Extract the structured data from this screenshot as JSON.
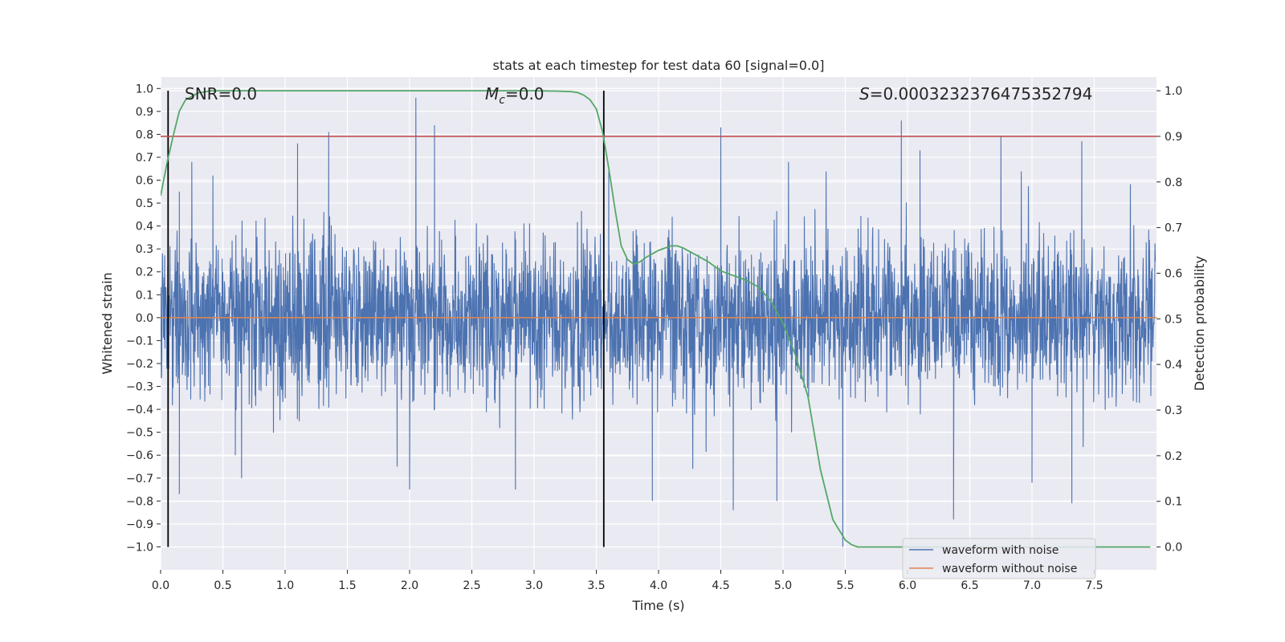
{
  "chart_data": {
    "type": "line",
    "title": "stats at each timestep for test data 60 [signal=0.0]",
    "xlabel": "Time (s)",
    "ylabel": "Whitened strain",
    "y2label": "Detection probability",
    "xlim": [
      0.0,
      8.0
    ],
    "ylim": [
      -1.1,
      1.05
    ],
    "y2lim": [
      -0.05,
      1.03
    ],
    "x_ticks": [
      "0.0",
      "0.5",
      "1.0",
      "1.5",
      "2.0",
      "2.5",
      "3.0",
      "3.5",
      "4.0",
      "4.5",
      "5.0",
      "5.5",
      "6.0",
      "6.5",
      "7.0",
      "7.5"
    ],
    "y_ticks": [
      "−1.0",
      "−0.9",
      "−0.8",
      "−0.7",
      "−0.6",
      "−0.5",
      "−0.4",
      "−0.3",
      "−0.2",
      "−0.1",
      "0.0",
      "0.1",
      "0.2",
      "0.3",
      "0.4",
      "0.5",
      "0.6",
      "0.7",
      "0.8",
      "0.9",
      "1.0"
    ],
    "y2_ticks": [
      "0.0",
      "0.1",
      "0.2",
      "0.3",
      "0.4",
      "0.5",
      "0.6",
      "0.7",
      "0.8",
      "0.9",
      "1.0"
    ],
    "grid": true,
    "legend_location": "lower right",
    "annotations": {
      "snr": "SNR=0.0",
      "mc_symbol": "M",
      "mc_subscript": "c",
      "mc_value": "=0.0",
      "s_symbol": "S",
      "s_value": "=0.0003232376475352794"
    },
    "vertical_lines_x": [
      0.06,
      3.56
    ],
    "threshold_probability": 0.9,
    "series": [
      {
        "name": "waveform with noise",
        "color": "#4c72b0",
        "axis": "left",
        "noise_envelope": 0.37,
        "peaks": [
          {
            "x": 0.15,
            "y": 0.55
          },
          {
            "x": 0.25,
            "y": 0.68
          },
          {
            "x": 0.42,
            "y": 0.62
          },
          {
            "x": 1.1,
            "y": 0.76
          },
          {
            "x": 1.35,
            "y": 0.81
          },
          {
            "x": 2.05,
            "y": 0.96
          },
          {
            "x": 2.2,
            "y": 0.84
          },
          {
            "x": 3.6,
            "y": 0.66
          },
          {
            "x": 4.5,
            "y": 0.83
          },
          {
            "x": 5.95,
            "y": 0.86
          },
          {
            "x": 6.1,
            "y": 0.73
          },
          {
            "x": 6.75,
            "y": 0.79
          },
          {
            "x": 7.4,
            "y": 0.77
          },
          {
            "x": 0.15,
            "y": -0.77
          },
          {
            "x": 0.6,
            "y": -0.6
          },
          {
            "x": 2.0,
            "y": -0.75
          },
          {
            "x": 2.85,
            "y": -0.75
          },
          {
            "x": 3.95,
            "y": -0.8
          },
          {
            "x": 4.6,
            "y": -0.84
          },
          {
            "x": 4.95,
            "y": -0.8
          },
          {
            "x": 5.48,
            "y": -1.0
          },
          {
            "x": 6.37,
            "y": -0.88
          },
          {
            "x": 7.32,
            "y": -0.81
          },
          {
            "x": 7.0,
            "y": -0.72
          },
          {
            "x": 0.65,
            "y": -0.7
          },
          {
            "x": 1.9,
            "y": -0.65
          }
        ]
      },
      {
        "name": "waveform without noise",
        "color": "#dd8452",
        "axis": "left",
        "x": [
          0.0,
          8.0
        ],
        "y": [
          0.0,
          0.0
        ]
      },
      {
        "color": "#55a868",
        "axis": "right",
        "x": [
          0.0,
          0.05,
          0.1,
          0.15,
          0.2,
          0.3,
          0.4,
          0.5,
          1.0,
          2.0,
          3.0,
          3.2,
          3.3,
          3.35,
          3.4,
          3.45,
          3.5,
          3.55,
          3.6,
          3.65,
          3.7,
          3.75,
          3.8,
          3.85,
          3.9,
          4.0,
          4.1,
          4.15,
          4.2,
          4.3,
          4.4,
          4.5,
          4.6,
          4.7,
          4.8,
          4.9,
          5.0,
          5.1,
          5.2,
          5.3,
          5.4,
          5.5,
          5.55,
          5.6,
          6.0,
          7.0,
          7.95
        ],
        "y": [
          0.77,
          0.84,
          0.9,
          0.955,
          0.98,
          0.995,
          1.0,
          1.0,
          1.0,
          1.0,
          1.0,
          0.999,
          0.998,
          0.996,
          0.99,
          0.98,
          0.96,
          0.91,
          0.83,
          0.74,
          0.66,
          0.63,
          0.62,
          0.625,
          0.635,
          0.65,
          0.66,
          0.66,
          0.655,
          0.64,
          0.625,
          0.605,
          0.595,
          0.585,
          0.57,
          0.54,
          0.49,
          0.42,
          0.33,
          0.17,
          0.06,
          0.015,
          0.005,
          0.0,
          0.0,
          0.0,
          0.0
        ]
      },
      {
        "color": "#c44e52",
        "axis": "right",
        "x": [
          0.0,
          8.0
        ],
        "y": [
          0.9,
          0.9
        ]
      }
    ],
    "legend_entries": [
      "waveform with noise",
      "waveform without noise"
    ]
  }
}
